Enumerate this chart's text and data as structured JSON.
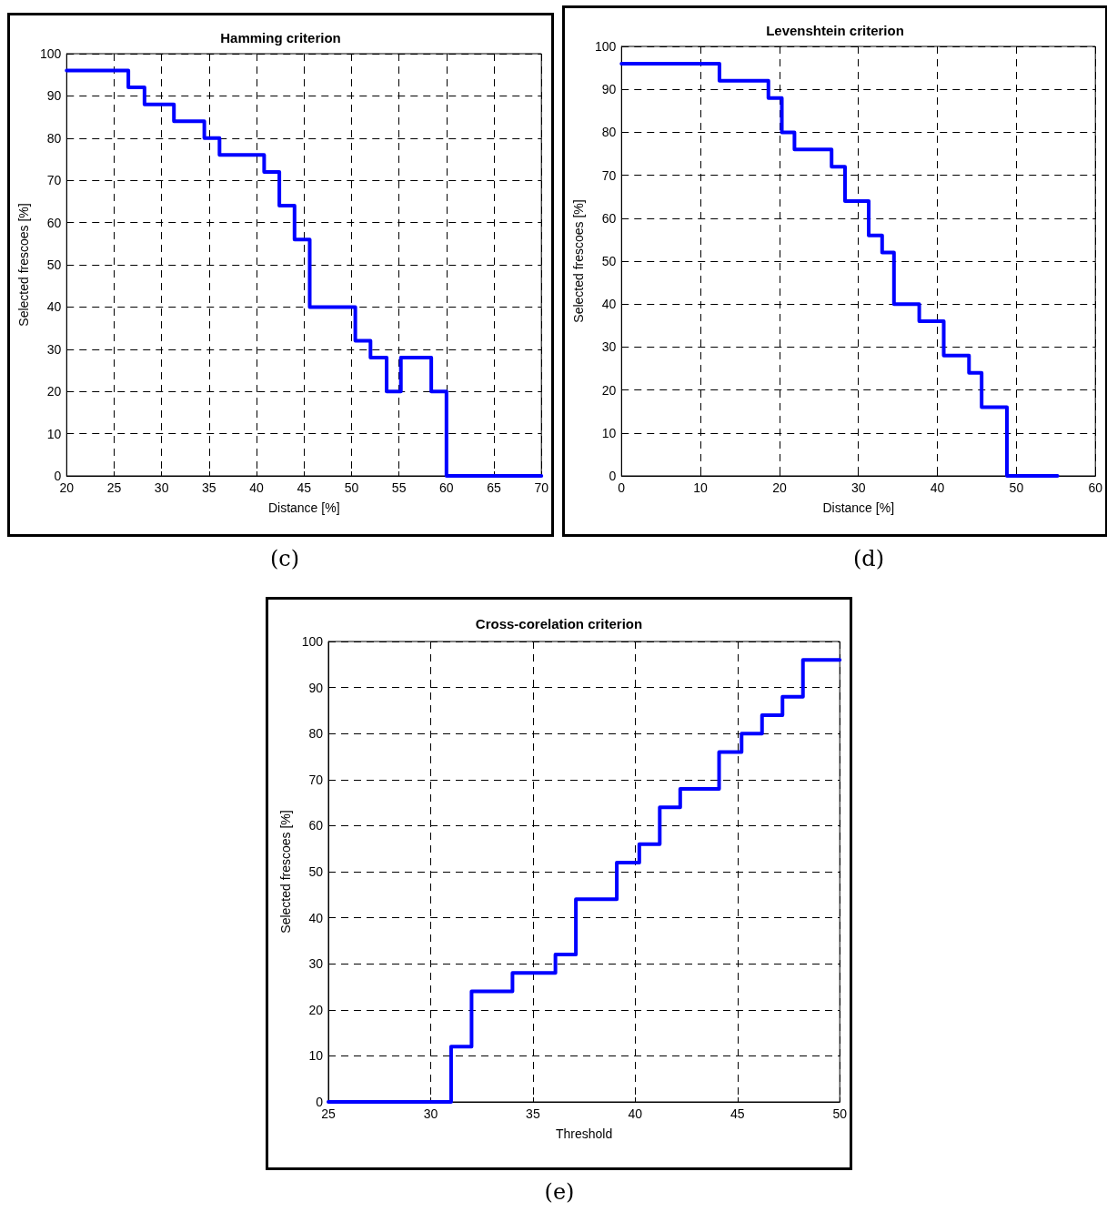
{
  "chart_data": [
    {
      "type": "step",
      "title": "Hamming criterion",
      "xlabel": "Distance [%]",
      "ylabel": "Selected frescoes [%]",
      "annotations": [
        "(c)"
      ],
      "x": [
        20,
        26.5,
        28.2,
        31.3,
        34.5,
        36.1,
        40.8,
        42.4,
        44,
        45.6,
        50.4,
        52,
        53.7,
        55.2,
        58.4,
        60,
        70
      ],
      "series": [
        {
          "color": "#0000ff",
          "values": [
            96,
            92,
            88,
            84,
            80,
            76,
            72,
            64,
            56,
            40,
            32,
            28,
            20,
            28,
            20,
            0,
            0
          ]
        }
      ],
      "xlim": [
        20,
        70
      ],
      "xticks": [
        20,
        25,
        30,
        35,
        40,
        45,
        50,
        55,
        60,
        65,
        70
      ],
      "ylim": [
        0,
        100
      ],
      "yticks": [
        0,
        10,
        20,
        30,
        40,
        50,
        60,
        70,
        80,
        90,
        100
      ],
      "grid": true,
      "marker": "none",
      "line_style": "solid"
    },
    {
      "type": "step",
      "title": "Levenshtein criterion",
      "xlabel": "Distance [%]",
      "ylabel": "Selected frescoes [%]",
      "annotations": [
        "(d)"
      ],
      "x": [
        0,
        12.4,
        18.6,
        20.3,
        21.9,
        26.6,
        28.3,
        31.3,
        33,
        34.5,
        37.7,
        40.8,
        44,
        45.6,
        48.8,
        55.2
      ],
      "series": [
        {
          "color": "#0000ff",
          "values": [
            96,
            92,
            88,
            80,
            76,
            72,
            64,
            56,
            52,
            40,
            36,
            28,
            24,
            16,
            0,
            0
          ]
        }
      ],
      "xlim": [
        0,
        60
      ],
      "xticks": [
        0,
        10,
        20,
        30,
        40,
        50,
        60
      ],
      "ylim": [
        0,
        100
      ],
      "yticks": [
        0,
        10,
        20,
        30,
        40,
        50,
        60,
        70,
        80,
        90,
        100
      ],
      "grid": true,
      "marker": "none",
      "line_style": "solid"
    },
    {
      "type": "step",
      "title": "Cross-corelation criterion",
      "xlabel": "Threshold",
      "ylabel": "Selected frescoes [%]",
      "annotations": [
        "(e)"
      ],
      "x": [
        25,
        31,
        32,
        34,
        36.1,
        37.1,
        39.1,
        40.2,
        41.2,
        42.2,
        44.1,
        45.2,
        46.2,
        47.2,
        48.2,
        50
      ],
      "series": [
        {
          "color": "#0000ff",
          "values": [
            0,
            12,
            24,
            28,
            32,
            44,
            52,
            56,
            64,
            68,
            76,
            80,
            84,
            88,
            96,
            96
          ]
        }
      ],
      "xlim": [
        25,
        50
      ],
      "xticks": [
        25,
        30,
        35,
        40,
        45,
        50
      ],
      "ylim": [
        0,
        100
      ],
      "yticks": [
        0,
        10,
        20,
        30,
        40,
        50,
        60,
        70,
        80,
        90,
        100
      ],
      "grid": true,
      "marker": "none",
      "line_style": "solid"
    }
  ]
}
